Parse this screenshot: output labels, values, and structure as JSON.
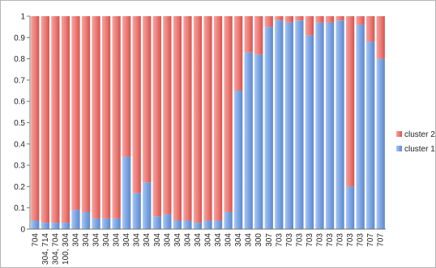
{
  "chart_data": {
    "type": "bar",
    "stacked": true,
    "percent_stacked": true,
    "title": "",
    "xlabel": "",
    "ylabel": "",
    "ylim": [
      0,
      1
    ],
    "y_ticks": [
      "0",
      "0.1",
      "0.2",
      "0.3",
      "0.4",
      "0.5",
      "0.6",
      "0.7",
      "0.8",
      "0.9",
      "1"
    ],
    "grid": false,
    "legend_position": "right",
    "categories": [
      "704",
      "304, 714",
      "304, 704",
      "100, 304",
      "304",
      "304",
      "304",
      "304",
      "304",
      "304",
      "304",
      "304",
      "304",
      "304",
      "304",
      "304",
      "304",
      "304",
      "304",
      "304",
      "304",
      "304",
      "300",
      "307",
      "703",
      "703",
      "703",
      "703",
      "703",
      "703",
      "703",
      "703",
      "703",
      "707",
      "707"
    ],
    "series": [
      {
        "name": "cluster 1",
        "color": "#8fb4ea",
        "values": [
          0.04,
          0.03,
          0.03,
          0.03,
          0.09,
          0.08,
          0.05,
          0.05,
          0.05,
          0.34,
          0.17,
          0.22,
          0.06,
          0.07,
          0.04,
          0.04,
          0.03,
          0.04,
          0.04,
          0.08,
          0.65,
          0.83,
          0.82,
          0.95,
          0.98,
          0.97,
          0.98,
          0.91,
          0.97,
          0.97,
          0.98,
          0.2,
          0.96,
          0.88,
          0.8
        ]
      },
      {
        "name": "cluster 2",
        "color": "#f08f8b",
        "values": [
          0.96,
          0.97,
          0.97,
          0.97,
          0.91,
          0.92,
          0.95,
          0.95,
          0.95,
          0.66,
          0.83,
          0.78,
          0.94,
          0.93,
          0.96,
          0.96,
          0.97,
          0.96,
          0.96,
          0.92,
          0.35,
          0.17,
          0.18,
          0.05,
          0.02,
          0.03,
          0.02,
          0.09,
          0.03,
          0.03,
          0.02,
          0.8,
          0.04,
          0.12,
          0.2
        ]
      }
    ],
    "legend": [
      {
        "label": "cluster 2",
        "color": "#f08f8b"
      },
      {
        "label": "cluster 1",
        "color": "#8fb4ea"
      }
    ]
  }
}
